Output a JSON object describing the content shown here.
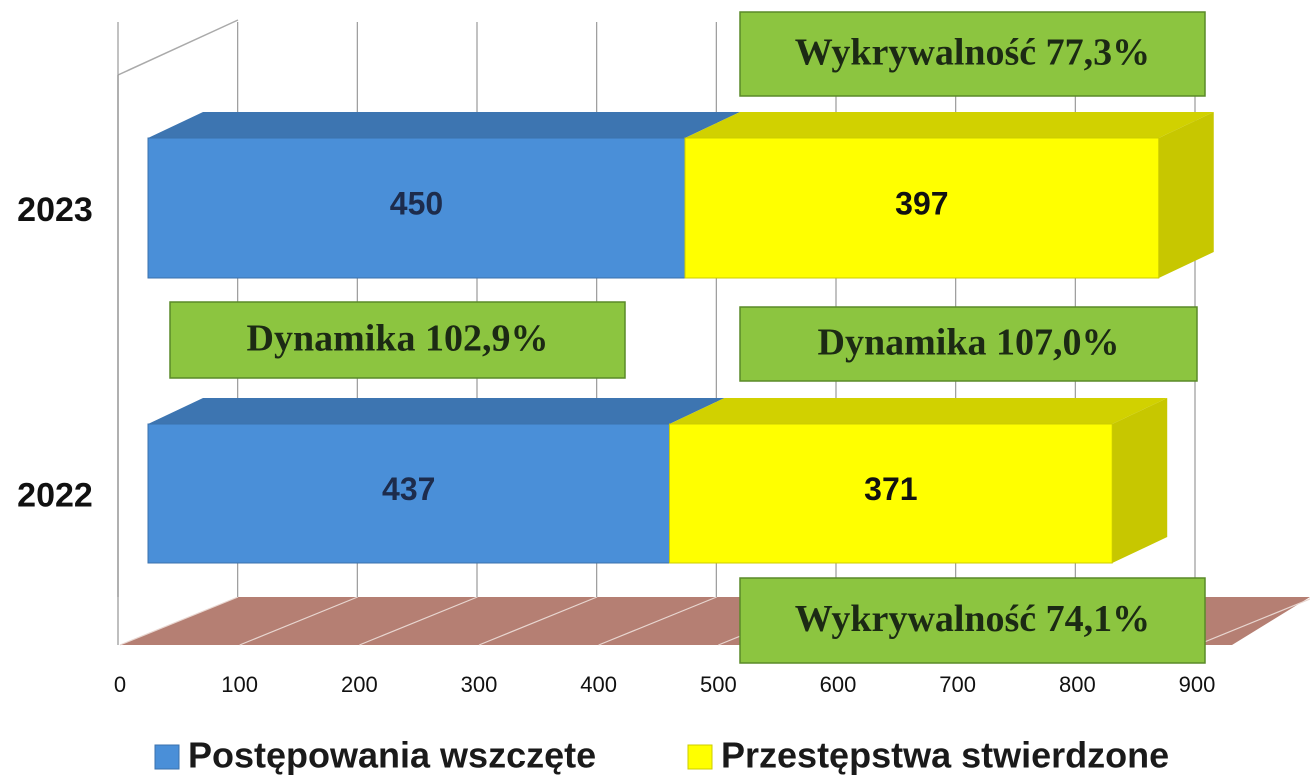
{
  "chart_data": {
    "type": "bar3d_stacked_horizontal",
    "categories": [
      "2023",
      "2022"
    ],
    "series": [
      {
        "name": "Postępowania wszczęte",
        "color": "#4a8fd8",
        "values": [
          450,
          437
        ]
      },
      {
        "name": "Przestępstwa stwierdzone",
        "color": "#ffff00",
        "values": [
          397,
          371
        ]
      }
    ],
    "xlim": [
      0,
      900
    ],
    "xticks": [
      0,
      100,
      200,
      300,
      400,
      500,
      600,
      700,
      800,
      900
    ],
    "grid": true,
    "legend": "bottom",
    "annotations": [
      "Wykrywalność 77,3%",
      "Dynamika 102,9%",
      "Dynamika 107,0%",
      "Wykrywalność 74,1%"
    ]
  }
}
